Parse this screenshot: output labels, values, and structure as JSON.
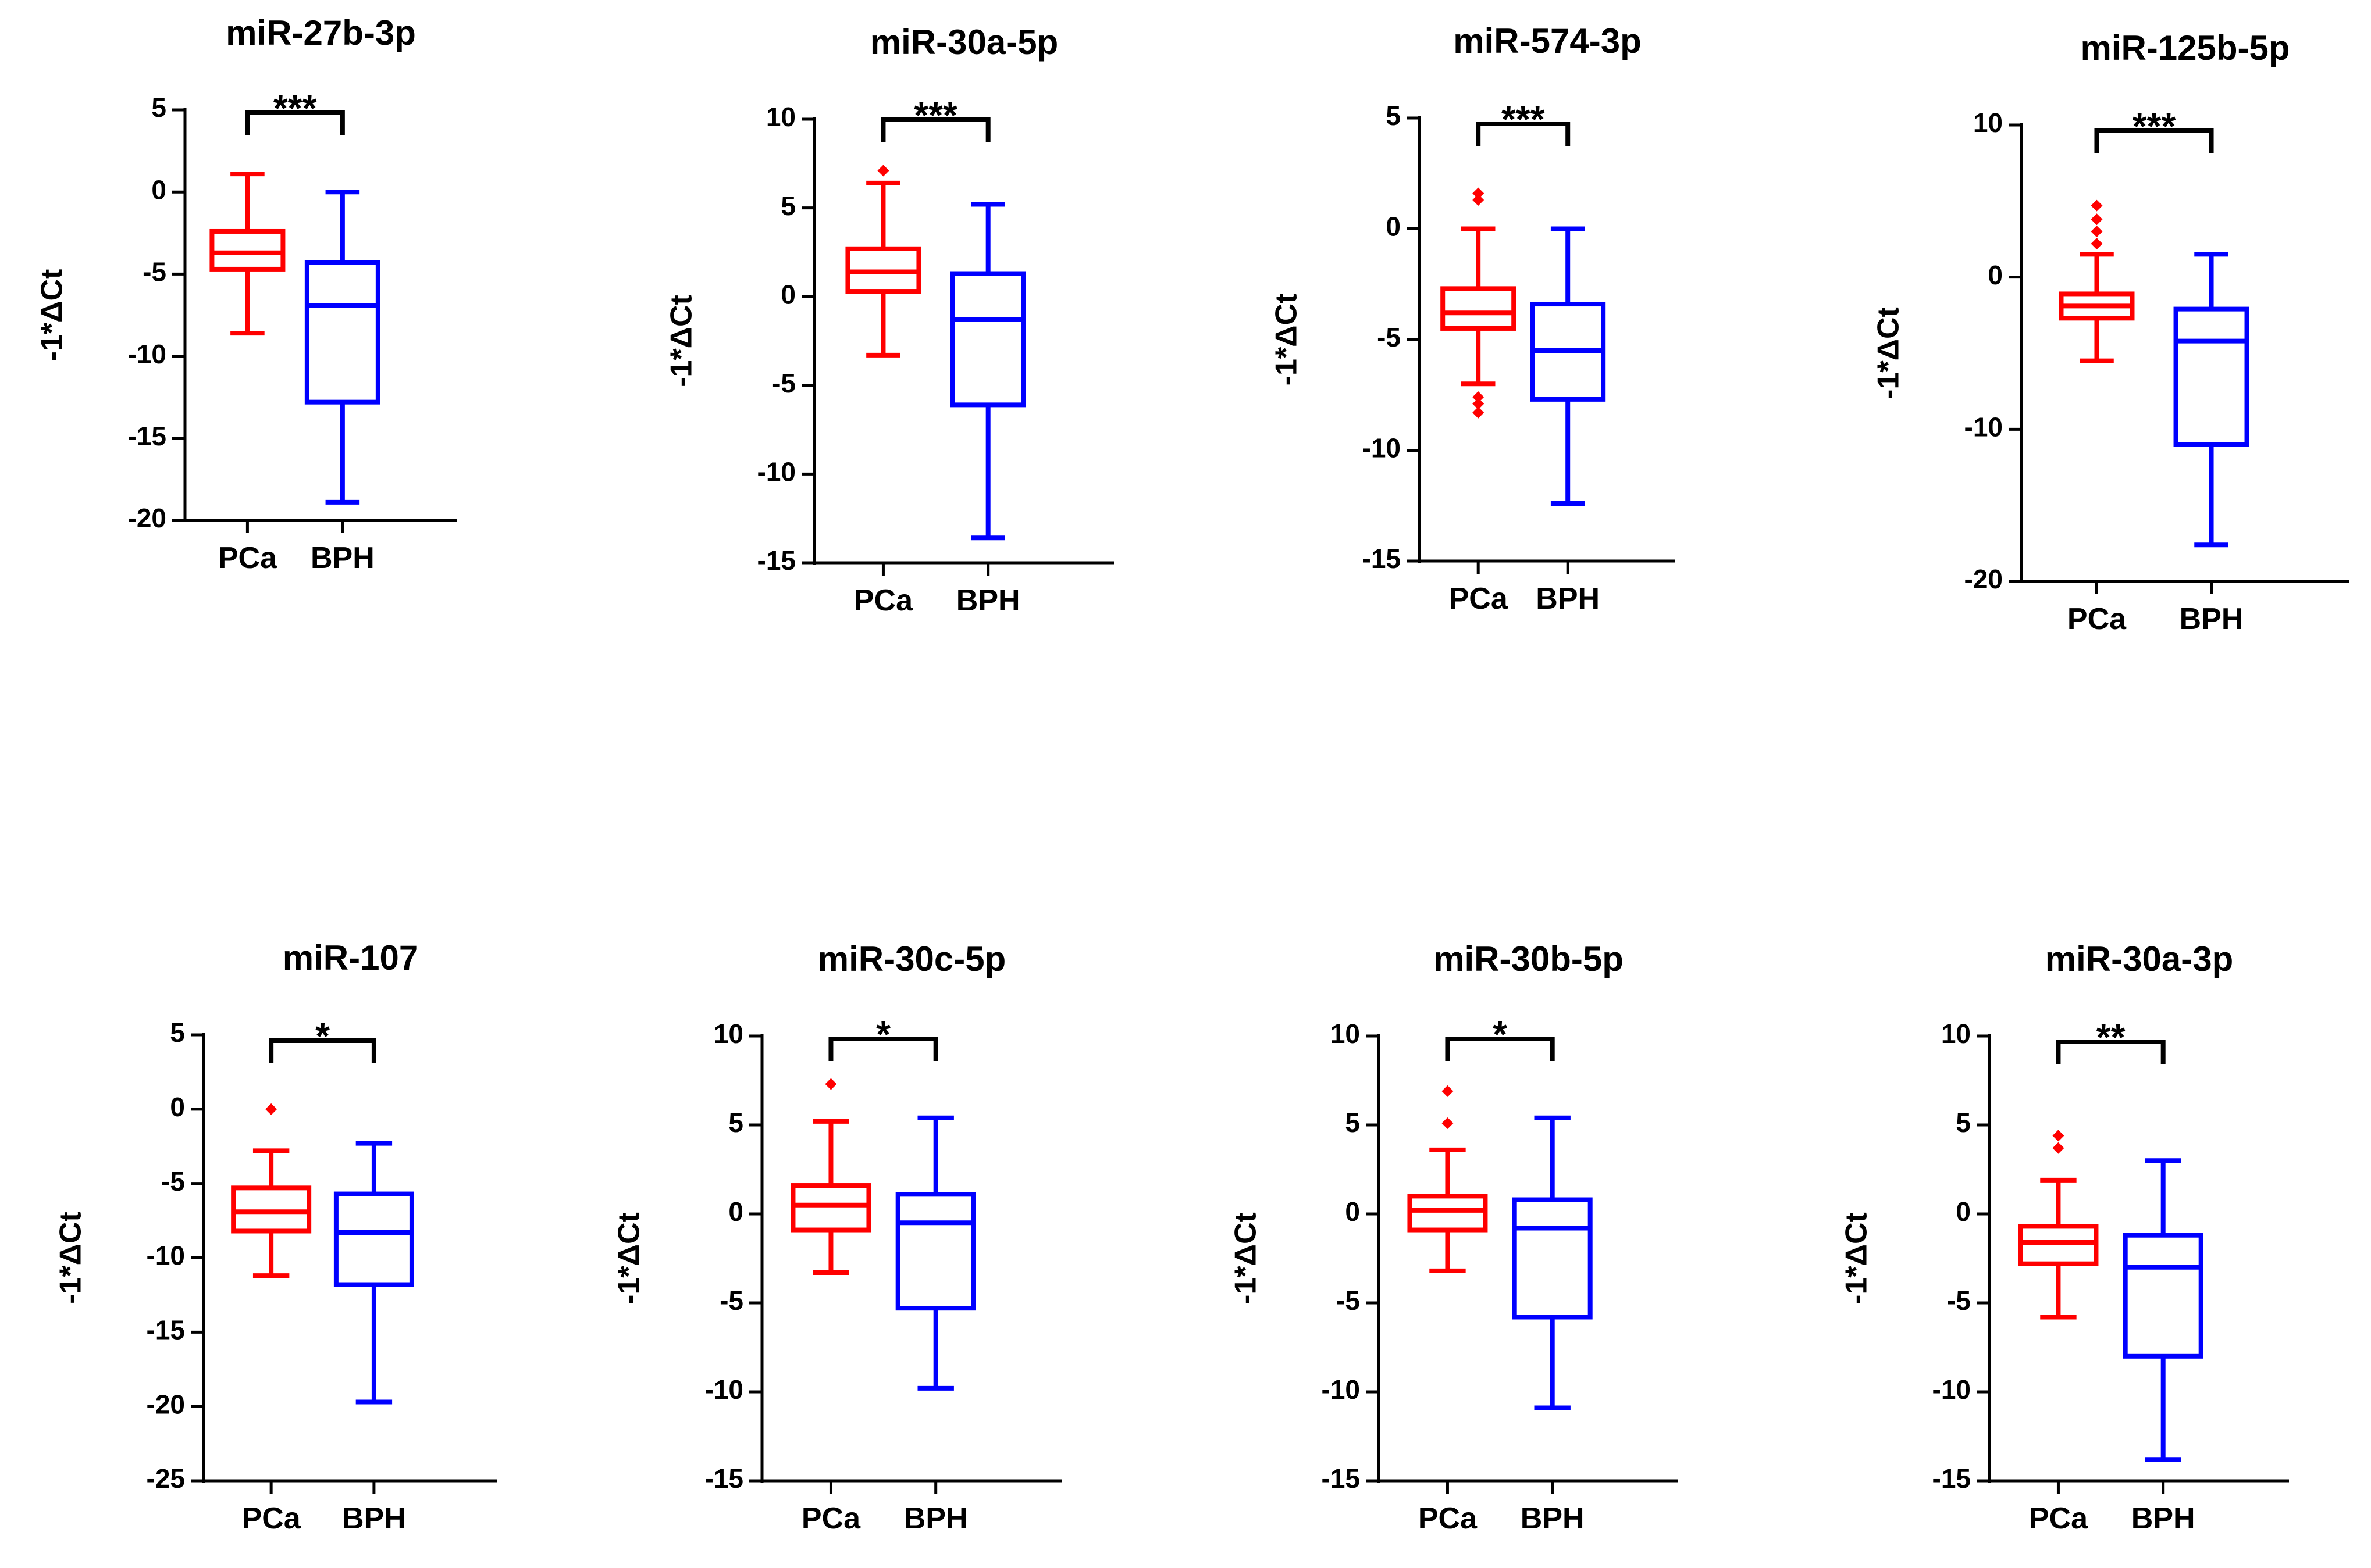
{
  "colors": {
    "PCa": "#ff0000",
    "BPH": "#0000ff",
    "axis": "#000000"
  },
  "chart_data": [
    {
      "type": "box",
      "title": "miR-27b-3p",
      "ylabel": "-1*ΔCt",
      "categories": [
        "PCa",
        "BPH"
      ],
      "ylim": [
        -20,
        5
      ],
      "yticks": [
        5,
        0,
        -5,
        -10,
        -15,
        -20
      ],
      "significance": "***",
      "groups": [
        {
          "name": "PCa",
          "min": -8.6,
          "q1": -4.7,
          "median": -3.7,
          "q3": -2.4,
          "max": 1.1,
          "outliers": []
        },
        {
          "name": "BPH",
          "min": -18.9,
          "q1": -12.8,
          "median": -6.9,
          "q3": -4.3,
          "max": 0.0,
          "outliers": []
        }
      ]
    },
    {
      "type": "box",
      "title": "miR-30a-5p",
      "ylabel": "-1*ΔCt",
      "categories": [
        "PCa",
        "BPH"
      ],
      "ylim": [
        -15,
        10
      ],
      "yticks": [
        10,
        5,
        0,
        -5,
        -10,
        -15
      ],
      "significance": "***",
      "groups": [
        {
          "name": "PCa",
          "min": -3.3,
          "q1": 0.3,
          "median": 1.4,
          "q3": 2.7,
          "max": 6.4,
          "outliers": [
            7.1
          ]
        },
        {
          "name": "BPH",
          "min": -13.6,
          "q1": -6.1,
          "median": -1.3,
          "q3": 1.3,
          "max": 5.2,
          "outliers": []
        }
      ]
    },
    {
      "type": "box",
      "title": "miR-574-3p",
      "ylabel": "-1*ΔCt",
      "categories": [
        "PCa",
        "BPH"
      ],
      "ylim": [
        -15,
        5
      ],
      "yticks": [
        5,
        0,
        -5,
        -10,
        -15
      ],
      "significance": "***",
      "groups": [
        {
          "name": "PCa",
          "min": -7.0,
          "q1": -4.5,
          "median": -3.8,
          "q3": -2.7,
          "max": 0.0,
          "outliers": [
            1.6,
            1.3,
            -7.6,
            -7.9,
            -8.3
          ]
        },
        {
          "name": "BPH",
          "min": -12.4,
          "q1": -7.7,
          "median": -5.5,
          "q3": -3.4,
          "max": 0.0,
          "outliers": []
        }
      ]
    },
    {
      "type": "box",
      "title": "miR-125b-5p",
      "ylabel": "-1*ΔCt",
      "categories": [
        "PCa",
        "BPH"
      ],
      "ylim": [
        -20,
        10
      ],
      "yticks": [
        10,
        0,
        -10,
        -20
      ],
      "significance": "***",
      "groups": [
        {
          "name": "PCa",
          "min": -5.5,
          "q1": -2.7,
          "median": -1.9,
          "q3": -1.1,
          "max": 1.5,
          "outliers": [
            4.7,
            3.8,
            3.0,
            2.2
          ]
        },
        {
          "name": "BPH",
          "min": -17.6,
          "q1": -11.0,
          "median": -4.2,
          "q3": -2.1,
          "max": 1.5,
          "outliers": []
        }
      ]
    },
    {
      "type": "box",
      "title": "miR-107",
      "ylabel": "-1*ΔCt",
      "categories": [
        "PCa",
        "BPH"
      ],
      "ylim": [
        -25,
        5
      ],
      "yticks": [
        5,
        0,
        -5,
        -10,
        -15,
        -20,
        -25
      ],
      "significance": "*",
      "groups": [
        {
          "name": "PCa",
          "min": -11.2,
          "q1": -8.2,
          "median": -6.9,
          "q3": -5.3,
          "max": -2.8,
          "outliers": [
            0.0
          ]
        },
        {
          "name": "BPH",
          "min": -19.7,
          "q1": -11.8,
          "median": -8.3,
          "q3": -5.7,
          "max": -2.3,
          "outliers": []
        }
      ]
    },
    {
      "type": "box",
      "title": "miR-30c-5p",
      "ylabel": "-1*ΔCt",
      "categories": [
        "PCa",
        "BPH"
      ],
      "ylim": [
        -15,
        10
      ],
      "yticks": [
        10,
        5,
        0,
        -5,
        -10,
        -15
      ],
      "significance": "*",
      "groups": [
        {
          "name": "PCa",
          "min": -3.3,
          "q1": -0.9,
          "median": 0.5,
          "q3": 1.6,
          "max": 5.2,
          "outliers": [
            7.3
          ]
        },
        {
          "name": "BPH",
          "min": -9.8,
          "q1": -5.3,
          "median": -0.5,
          "q3": 1.1,
          "max": 5.4,
          "outliers": []
        }
      ]
    },
    {
      "type": "box",
      "title": "miR-30b-5p",
      "ylabel": "-1*ΔCt",
      "categories": [
        "PCa",
        "BPH"
      ],
      "ylim": [
        -15,
        10
      ],
      "yticks": [
        10,
        5,
        0,
        -5,
        -10,
        -15
      ],
      "significance": "*",
      "groups": [
        {
          "name": "PCa",
          "min": -3.2,
          "q1": -0.9,
          "median": 0.2,
          "q3": 1.0,
          "max": 3.6,
          "outliers": [
            6.9,
            5.1
          ]
        },
        {
          "name": "BPH",
          "min": -10.9,
          "q1": -5.8,
          "median": -0.8,
          "q3": 0.8,
          "max": 5.4,
          "outliers": []
        }
      ]
    },
    {
      "type": "box",
      "title": "miR-30a-3p",
      "ylabel": "-1*ΔCt",
      "categories": [
        "PCa",
        "BPH"
      ],
      "ylim": [
        -15,
        10
      ],
      "yticks": [
        10,
        5,
        0,
        -5,
        -10,
        -15
      ],
      "significance": "**",
      "groups": [
        {
          "name": "PCa",
          "min": -5.8,
          "q1": -2.8,
          "median": -1.6,
          "q3": -0.7,
          "max": 1.9,
          "outliers": [
            4.4,
            3.7
          ]
        },
        {
          "name": "BPH",
          "min": -13.8,
          "q1": -8.0,
          "median": -3.0,
          "q3": -1.2,
          "max": 3.0,
          "outliers": []
        }
      ]
    }
  ]
}
